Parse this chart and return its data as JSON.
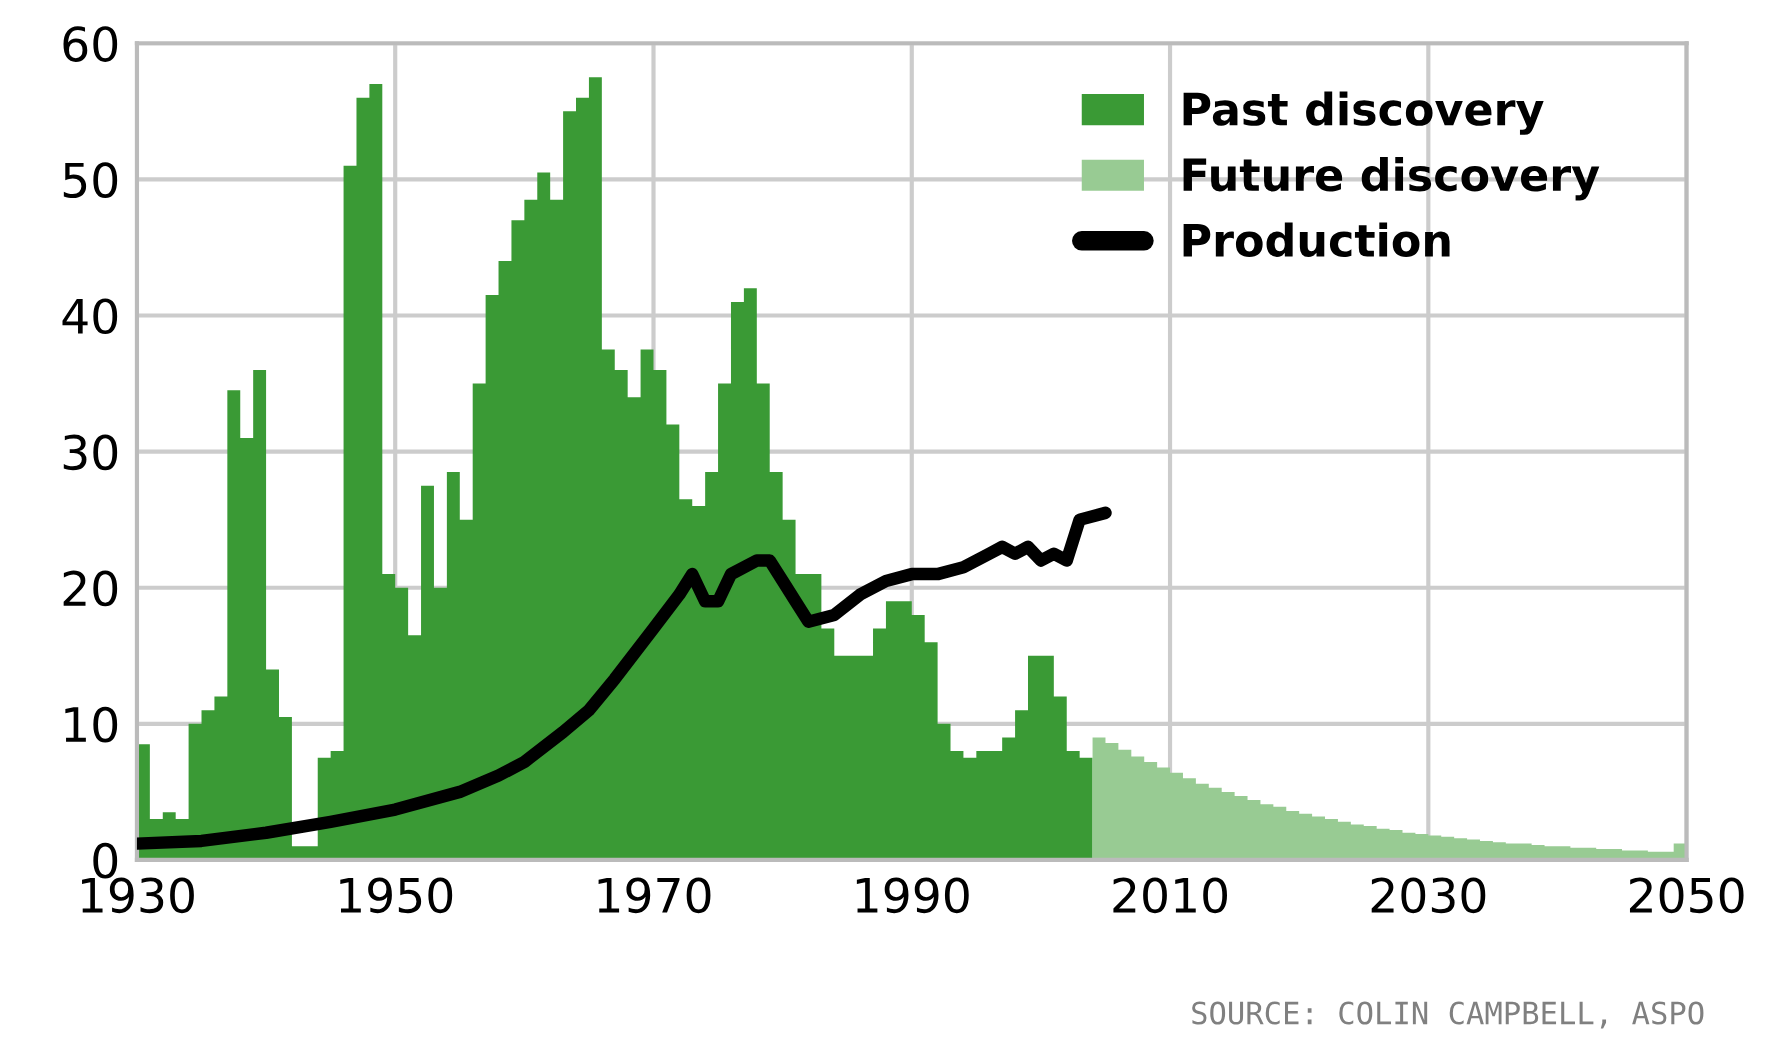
{
  "chart_data": {
    "type": "histogram",
    "xlim": [
      1930,
      2050
    ],
    "xticks": [
      1930,
      1950,
      1970,
      1990,
      2010,
      2030,
      2050
    ],
    "ylim": [
      0,
      60
    ],
    "yticks": [
      0,
      10,
      20,
      30,
      40,
      50,
      60
    ],
    "grid": true,
    "legend": "top right",
    "annotations": [
      "SOURCE: COLIN CAMPBELL, ASPO"
    ],
    "series": [
      {
        "name": "Past discovery",
        "color": "#3a9a35",
        "bins": [
          1930,
          1931,
          1932,
          1933,
          1934,
          1935,
          1936,
          1937,
          1938,
          1939,
          1940,
          1941,
          1942,
          1943,
          1944,
          1945,
          1946,
          1947,
          1948,
          1949,
          1950,
          1951,
          1952,
          1953,
          1954,
          1955,
          1956,
          1957,
          1958,
          1959,
          1960,
          1961,
          1962,
          1963,
          1964,
          1965,
          1966,
          1967,
          1968,
          1969,
          1970,
          1971,
          1972,
          1973,
          1974,
          1975,
          1976,
          1977,
          1978,
          1979,
          1980,
          1981,
          1982,
          1983,
          1984,
          1985,
          1986,
          1987,
          1988,
          1989,
          1990,
          1991,
          1992,
          1993,
          1994,
          1995,
          1996,
          1997,
          1998,
          1999,
          2000,
          2001,
          2002,
          2003,
          2004
        ],
        "values": [
          8.5,
          3,
          3.5,
          3,
          10,
          11,
          12,
          34.5,
          31,
          36,
          14,
          10.5,
          1,
          1,
          7.5,
          8,
          51,
          56,
          57,
          21,
          20,
          16.5,
          27.5,
          20,
          28.5,
          25,
          35,
          41.5,
          44,
          47,
          48.5,
          50.5,
          48.5,
          55,
          56,
          57.5,
          37.5,
          36,
          34,
          37.5,
          36,
          32,
          26.5,
          26,
          28.5,
          35,
          41,
          42,
          35,
          28.5,
          25,
          21,
          21,
          17,
          15,
          15,
          15,
          17,
          19,
          19,
          18,
          16,
          10,
          8,
          7.5,
          8,
          8,
          9,
          11,
          15,
          15,
          12,
          8,
          7.5
        ]
      },
      {
        "name": "Future discovery",
        "color": "#98cb93",
        "bins": [
          2004,
          2005,
          2006,
          2007,
          2008,
          2009,
          2010,
          2011,
          2012,
          2013,
          2014,
          2015,
          2016,
          2017,
          2018,
          2019,
          2020,
          2021,
          2022,
          2023,
          2024,
          2025,
          2026,
          2027,
          2028,
          2029,
          2030,
          2031,
          2032,
          2033,
          2034,
          2035,
          2036,
          2037,
          2038,
          2039,
          2040,
          2041,
          2042,
          2043,
          2044,
          2045,
          2046,
          2047,
          2048,
          2049,
          2050
        ],
        "values": [
          9,
          8.6,
          8.1,
          7.6,
          7.2,
          6.8,
          6.4,
          6.0,
          5.6,
          5.3,
          5.0,
          4.7,
          4.4,
          4.1,
          3.9,
          3.6,
          3.4,
          3.2,
          3.0,
          2.8,
          2.6,
          2.5,
          2.3,
          2.2,
          2.0,
          1.9,
          1.8,
          1.7,
          1.6,
          1.5,
          1.4,
          1.3,
          1.2,
          1.2,
          1.1,
          1.0,
          1.0,
          0.9,
          0.9,
          0.8,
          0.8,
          0.7,
          0.7,
          0.6,
          0.6,
          1.2
        ]
      },
      {
        "name": "Production",
        "type": "line",
        "color": "#000000",
        "x": [
          1930,
          1935,
          1940,
          1945,
          1950,
          1955,
          1958,
          1960,
          1963,
          1965,
          1967,
          1970,
          1972,
          1973,
          1974,
          1975,
          1976,
          1978,
          1979,
          1980,
          1981,
          1982,
          1984,
          1986,
          1988,
          1990,
          1992,
          1994,
          1996,
          1997,
          1998,
          1999,
          2000,
          2001,
          2002,
          2003,
          2005
        ],
        "values": [
          1.2,
          1.4,
          2.0,
          2.8,
          3.7,
          5.0,
          6.2,
          7.2,
          9.4,
          11,
          13.3,
          17,
          19.5,
          21,
          19,
          19,
          21,
          22,
          22,
          20.5,
          19,
          17.5,
          18,
          19.5,
          20.5,
          21,
          21,
          21.5,
          22.5,
          23,
          22.5,
          23,
          22,
          22.5,
          22,
          25,
          25.5
        ]
      }
    ]
  }
}
